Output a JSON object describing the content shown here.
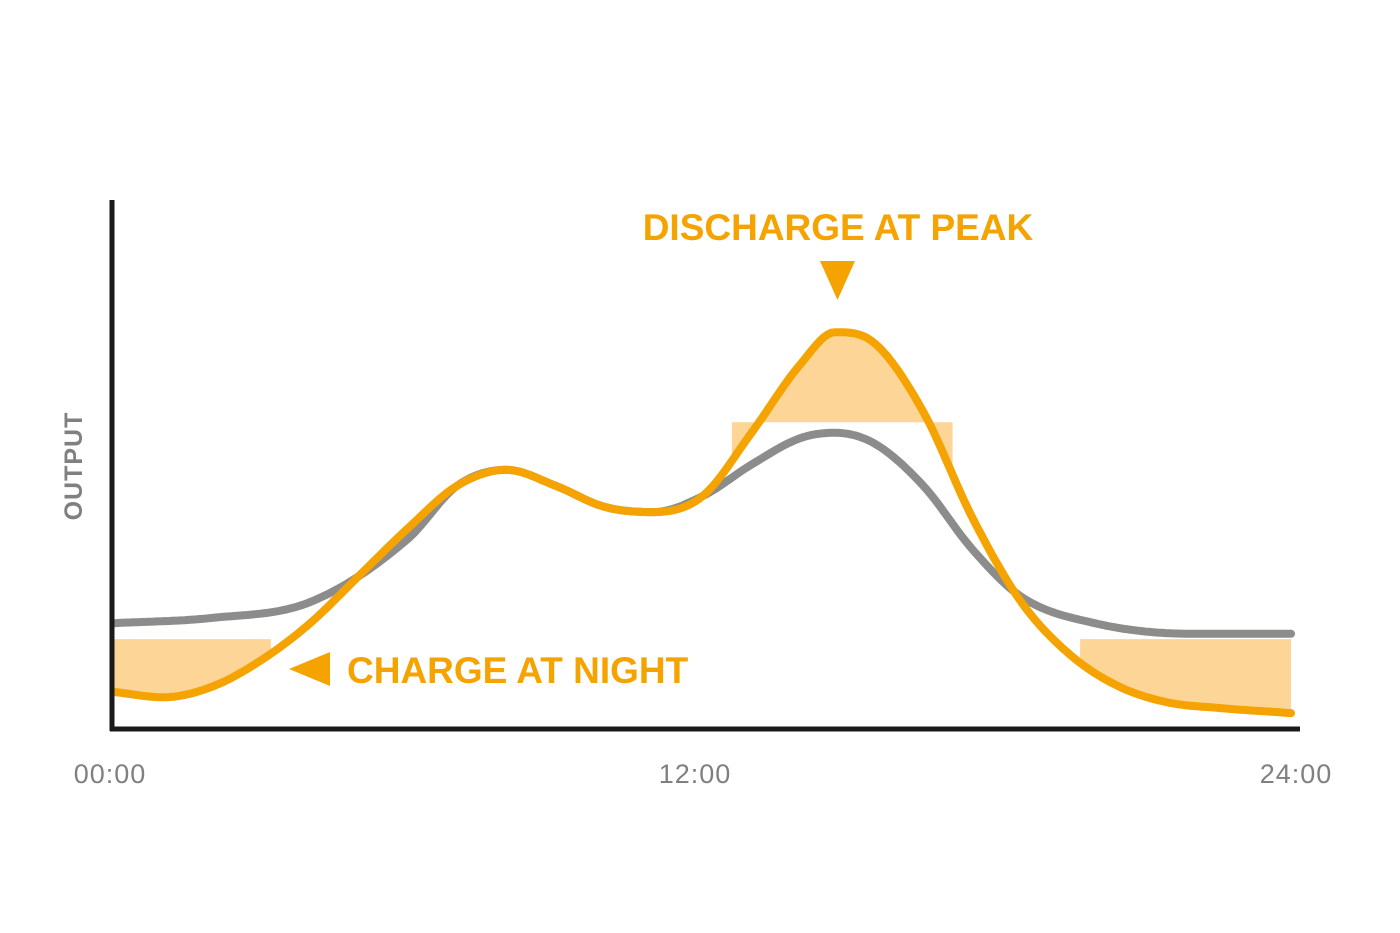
{
  "chart_data": {
    "type": "line",
    "ylabel": "OUTPUT",
    "xlabel": "",
    "x_ticks": [
      "00:00",
      "12:00",
      "24:00"
    ],
    "xlim": [
      0,
      24
    ],
    "ylim": [
      0,
      1
    ],
    "grid": false,
    "series": [
      {
        "role": "baseline",
        "color": "#8c8c8c",
        "x": [
          0,
          2,
          4,
          6,
          7,
          8,
          9,
          10,
          11,
          12,
          13,
          14,
          14.7,
          15.5,
          16.5,
          17.5,
          18.5,
          20,
          22,
          24
        ],
        "y": [
          0.2,
          0.21,
          0.24,
          0.36,
          0.46,
          0.49,
          0.46,
          0.42,
          0.41,
          0.44,
          0.5,
          0.55,
          0.56,
          0.54,
          0.46,
          0.34,
          0.25,
          0.2,
          0.18,
          0.18
        ]
      },
      {
        "role": "with storage",
        "color": "#f5a300",
        "x": [
          0,
          1,
          2,
          3,
          4,
          5,
          6,
          7,
          8,
          9,
          10,
          11,
          12,
          13,
          14,
          14.7,
          15.5,
          16.5,
          17.5,
          18.5,
          19.5,
          20.5,
          21.5,
          22.5,
          24
        ],
        "y": [
          0.07,
          0.06,
          0.08,
          0.13,
          0.2,
          0.29,
          0.38,
          0.46,
          0.49,
          0.46,
          0.42,
          0.41,
          0.44,
          0.56,
          0.69,
          0.75,
          0.73,
          0.6,
          0.4,
          0.24,
          0.14,
          0.08,
          0.05,
          0.04,
          0.03
        ]
      }
    ],
    "areas": [
      {
        "name": "charge",
        "color": "#fcd597",
        "x_range": [
          0,
          3.2
        ],
        "y_level": 0.17
      },
      {
        "name": "discharge",
        "color": "#fcd597",
        "x_range": [
          12.6,
          17.1
        ],
        "y_level": 0.58
      },
      {
        "name": "charge-evening",
        "color": "#fcd597",
        "x_range": [
          19.7,
          24
        ],
        "y_level": 0.17
      }
    ],
    "annotations": [
      {
        "key": "discharge",
        "text": "DISCHARGE AT PEAK",
        "at": [
          14.7,
          0.75
        ],
        "arrow": "down"
      },
      {
        "key": "charge",
        "text": "CHARGE AT NIGHT",
        "at": [
          4.8,
          0.11
        ],
        "arrow": "left"
      }
    ],
    "colors": {
      "axis": "#1a1a1a",
      "baseline": "#8c8c8c",
      "storage": "#f5a300",
      "fill": "#fcd597",
      "tick_text": "#808080"
    }
  }
}
